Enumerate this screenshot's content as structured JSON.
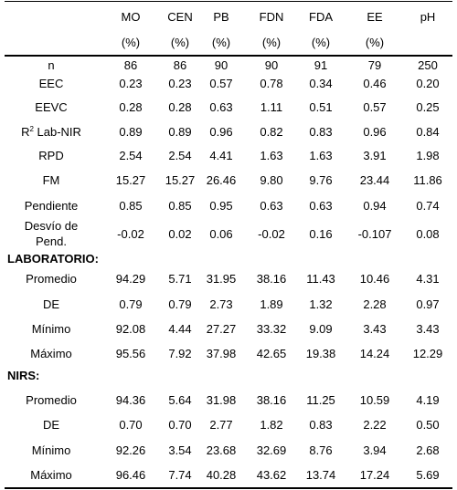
{
  "columns": [
    {
      "name": "MO",
      "unit": "(%)"
    },
    {
      "name": "CEN",
      "unit": "(%)"
    },
    {
      "name": "PB",
      "unit": "(%)"
    },
    {
      "name": "FDN",
      "unit": "(%)"
    },
    {
      "name": "FDA",
      "unit": "(%)"
    },
    {
      "name": "EE",
      "unit": "(%)"
    },
    {
      "name": "pH",
      "unit": ""
    }
  ],
  "stats_rows": [
    {
      "label": "n",
      "values": [
        "86",
        "86",
        "90",
        "90",
        "91",
        "79",
        "250"
      ]
    },
    {
      "label": "EEC",
      "values": [
        "0.23",
        "0.23",
        "0.57",
        "0.78",
        "0.34",
        "0.46",
        "0.20"
      ]
    },
    {
      "label": "EEVC",
      "values": [
        "0.28",
        "0.28",
        "0.63",
        "1.11",
        "0.51",
        "0.57",
        "0.25"
      ]
    },
    {
      "label": "Lab-NIR",
      "label_prefix": "R",
      "label_sup": "2",
      "values": [
        "0.89",
        "0.89",
        "0.96",
        "0.82",
        "0.83",
        "0.96",
        "0.84"
      ]
    },
    {
      "label": "RPD",
      "values": [
        "2.54",
        "2.54",
        "4.41",
        "1.63",
        "1.63",
        "3.91",
        "1.98"
      ]
    },
    {
      "label": "FM",
      "values": [
        "15.27",
        "15.27",
        "26.46",
        "9.80",
        "9.76",
        "23.44",
        "11.86"
      ]
    },
    {
      "label": "Pendiente",
      "values": [
        "0.85",
        "0.85",
        "0.95",
        "0.63",
        "0.63",
        "0.94",
        "0.74"
      ]
    },
    {
      "label_line1": "Desvío de",
      "label_line2": "Pend.",
      "values": [
        "-0.02",
        "0.02",
        "0.06",
        "-0.02",
        "0.16",
        "-0.107",
        "0.08"
      ]
    }
  ],
  "laboratorio": {
    "title": "LABORATORIO:",
    "rows": [
      {
        "label": "Promedio",
        "values": [
          "94.29",
          "5.71",
          "31.95",
          "38.16",
          "11.43",
          "10.46",
          "4.31"
        ]
      },
      {
        "label": "DE",
        "values": [
          "0.79",
          "0.79",
          "2.73",
          "1.89",
          "1.32",
          "2.28",
          "0.97"
        ]
      },
      {
        "label": "Mínimo",
        "values": [
          "92.08",
          "4.44",
          "27.27",
          "33.32",
          "9.09",
          "3.43",
          "3.43"
        ]
      },
      {
        "label": "Máximo",
        "values": [
          "95.56",
          "7.92",
          "37.98",
          "42.65",
          "19.38",
          "14.24",
          "12.29"
        ]
      }
    ]
  },
  "nirs": {
    "title": "NIRS:",
    "rows": [
      {
        "label": "Promedio",
        "values": [
          "94.36",
          "5.64",
          "31.98",
          "38.16",
          "11.25",
          "10.59",
          "4.19"
        ]
      },
      {
        "label": "DE",
        "values": [
          "0.70",
          "0.70",
          "2.77",
          "1.82",
          "0.83",
          "2.22",
          "0.50"
        ]
      },
      {
        "label": "Mínimo",
        "values": [
          "92.26",
          "3.54",
          "23.68",
          "32.69",
          "8.76",
          "3.94",
          "2.68"
        ]
      },
      {
        "label": "Máximo",
        "values": [
          "96.46",
          "7.74",
          "40.28",
          "43.62",
          "13.74",
          "17.24",
          "5.69"
        ]
      }
    ]
  }
}
